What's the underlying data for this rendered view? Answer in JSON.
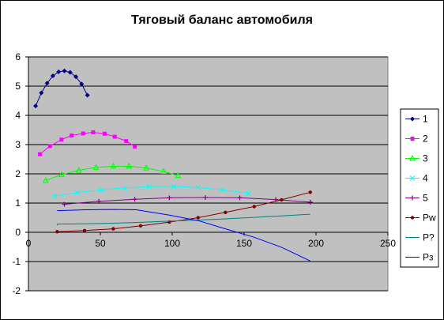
{
  "chart_data": {
    "type": "line",
    "title": "Тяговый баланс автомобиля",
    "xlabel": "",
    "ylabel": "",
    "xlim": [
      0,
      250
    ],
    "ylim": [
      -2,
      6
    ],
    "xticks": [
      0,
      50,
      100,
      150,
      200,
      250
    ],
    "yticks": [
      -2,
      -1,
      0,
      1,
      2,
      3,
      4,
      5,
      6
    ],
    "grid": "horizontal",
    "legend_position": "right",
    "plot_background": "#c0c0c0",
    "series": [
      {
        "name": "1",
        "color": "#000080",
        "marker": "diamond",
        "x": [
          5,
          9,
          13,
          17,
          21,
          25,
          29,
          33,
          37,
          41
        ],
        "y": [
          4.32,
          4.77,
          5.1,
          5.35,
          5.49,
          5.52,
          5.47,
          5.32,
          5.07,
          4.69
        ]
      },
      {
        "name": "2",
        "color": "#ff00ff",
        "marker": "square",
        "x": [
          8,
          15,
          23,
          30,
          38,
          45,
          53,
          60,
          68,
          74
        ],
        "y": [
          2.67,
          2.95,
          3.17,
          3.31,
          3.38,
          3.42,
          3.37,
          3.27,
          3.12,
          2.93
        ]
      },
      {
        "name": "3",
        "color": "#00ff00",
        "marker": "triangle",
        "x": [
          12,
          23,
          35,
          47,
          59,
          70,
          82,
          94,
          104
        ],
        "y": [
          1.77,
          1.97,
          2.12,
          2.22,
          2.26,
          2.26,
          2.2,
          2.08,
          1.94
        ]
      },
      {
        "name": "4",
        "color": "#00ffff",
        "marker": "x",
        "x": [
          18,
          34,
          51,
          67,
          84,
          101,
          118,
          135,
          153
        ],
        "y": [
          1.24,
          1.36,
          1.45,
          1.52,
          1.56,
          1.57,
          1.53,
          1.45,
          1.33
        ]
      },
      {
        "name": "5",
        "color": "#800080",
        "marker": "star",
        "x": [
          25,
          49,
          74,
          98,
          123,
          147,
          172,
          196
        ],
        "y": [
          0.96,
          1.06,
          1.13,
          1.18,
          1.19,
          1.18,
          1.12,
          1.03
        ]
      },
      {
        "name": "Pw",
        "color": "#800000",
        "marker": "circle",
        "x": [
          20,
          39,
          59,
          78,
          98,
          118,
          137,
          157,
          176,
          196
        ],
        "y": [
          0.02,
          0.06,
          0.12,
          0.22,
          0.35,
          0.5,
          0.68,
          0.88,
          1.11,
          1.37
        ]
      },
      {
        "name": "P?",
        "color": "#008080",
        "marker": "none",
        "x": [
          20,
          20,
          39,
          59,
          78,
          98,
          118,
          137,
          157,
          176,
          196
        ],
        "y": [
          0.24,
          0.28,
          0.29,
          0.31,
          0.34,
          0.38,
          0.42,
          0.46,
          0.51,
          0.56,
          0.62
        ]
      },
      {
        "name": "Pз",
        "color": "#0000ff",
        "marker": "none",
        "x": [
          20,
          40,
          60,
          75,
          98,
          118,
          137,
          157,
          176,
          196
        ],
        "y": [
          0.74,
          0.77,
          0.78,
          0.77,
          0.59,
          0.4,
          0.12,
          -0.17,
          -0.51,
          -0.98
        ]
      }
    ]
  }
}
